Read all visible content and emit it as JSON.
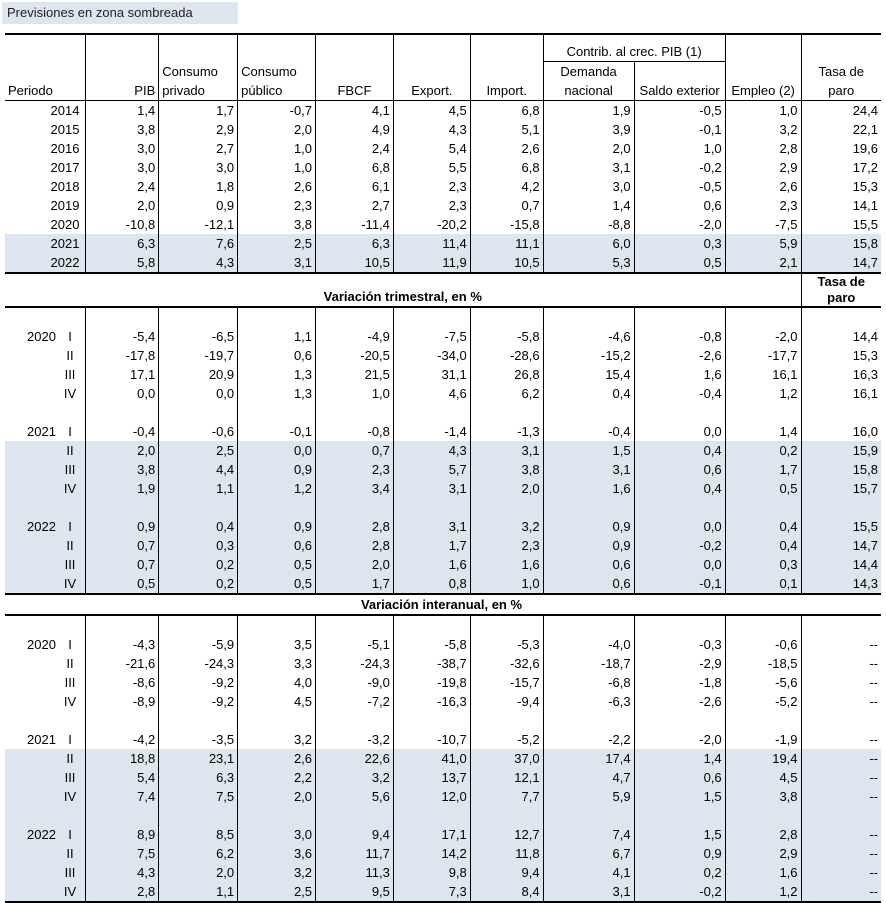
{
  "legend": "Previsiones en zona sombreada",
  "headers": {
    "periodo": "Periodo",
    "pib": "PIB",
    "consumo_privado": "Consumo privado",
    "consumo_publico": "Consumo público",
    "fbcf": "FBCF",
    "export": "Export.",
    "import": "Import.",
    "contrib": "Contrib. al crec. PIB (1)",
    "demanda_nacional": "Demanda nacional",
    "saldo_exterior": "Saldo exterior",
    "empleo": "Empleo (2)",
    "tasa_paro": "Tasa de paro"
  },
  "annual": [
    {
      "period": "2014",
      "values": [
        "1,4",
        "1,7",
        "-0,7",
        "4,1",
        "4,5",
        "6,8",
        "1,9",
        "-0,5",
        "1,0",
        "24,4"
      ],
      "shaded": false
    },
    {
      "period": "2015",
      "values": [
        "3,8",
        "2,9",
        "2,0",
        "4,9",
        "4,3",
        "5,1",
        "3,9",
        "-0,1",
        "3,2",
        "22,1"
      ],
      "shaded": false
    },
    {
      "period": "2016",
      "values": [
        "3,0",
        "2,7",
        "1,0",
        "2,4",
        "5,4",
        "2,6",
        "2,0",
        "1,0",
        "2,8",
        "19,6"
      ],
      "shaded": false
    },
    {
      "period": "2017",
      "values": [
        "3,0",
        "3,0",
        "1,0",
        "6,8",
        "5,5",
        "6,8",
        "3,1",
        "-0,2",
        "2,9",
        "17,2"
      ],
      "shaded": false
    },
    {
      "period": "2018",
      "values": [
        "2,4",
        "1,8",
        "2,6",
        "6,1",
        "2,3",
        "4,2",
        "3,0",
        "-0,5",
        "2,6",
        "15,3"
      ],
      "shaded": false
    },
    {
      "period": "2019",
      "values": [
        "2,0",
        "0,9",
        "2,3",
        "2,7",
        "2,3",
        "0,7",
        "1,4",
        "0,6",
        "2,3",
        "14,1"
      ],
      "shaded": false
    },
    {
      "period": "2020",
      "values": [
        "-10,8",
        "-12,1",
        "3,8",
        "-11,4",
        "-20,2",
        "-15,8",
        "-8,8",
        "-2,0",
        "-7,5",
        "15,5"
      ],
      "shaded": false
    },
    {
      "period": "2021",
      "values": [
        "6,3",
        "7,6",
        "2,5",
        "6,3",
        "11,4",
        "11,1",
        "6,0",
        "0,3",
        "5,9",
        "15,8"
      ],
      "shaded": true
    },
    {
      "period": "2022",
      "values": [
        "5,8",
        "4,3",
        "3,1",
        "10,5",
        "11,9",
        "10,5",
        "5,3",
        "0,5",
        "2,1",
        "14,7"
      ],
      "shaded": true
    }
  ],
  "quarterly_title": "Variación trimestral, en %",
  "quarterly_paro": "Tasa de paro",
  "quarterly": [
    {
      "year": "2020",
      "q": "I",
      "values": [
        "-5,4",
        "-6,5",
        "1,1",
        "-4,9",
        "-7,5",
        "-5,8",
        "-4,6",
        "-0,8",
        "-2,0",
        "14,4"
      ],
      "shaded": false
    },
    {
      "year": "",
      "q": "II",
      "values": [
        "-17,8",
        "-19,7",
        "0,6",
        "-20,5",
        "-34,0",
        "-28,6",
        "-15,2",
        "-2,6",
        "-17,7",
        "15,3"
      ],
      "shaded": false
    },
    {
      "year": "",
      "q": "III",
      "values": [
        "17,1",
        "20,9",
        "1,3",
        "21,5",
        "31,1",
        "26,8",
        "15,4",
        "1,6",
        "16,1",
        "16,3"
      ],
      "shaded": false
    },
    {
      "year": "",
      "q": "IV",
      "values": [
        "0,0",
        "0,0",
        "1,3",
        "1,0",
        "4,6",
        "6,2",
        "0,4",
        "-0,4",
        "1,2",
        "16,1"
      ],
      "shaded": false
    },
    {
      "gap": true
    },
    {
      "year": "2021",
      "q": "I",
      "values": [
        "-0,4",
        "-0,6",
        "-0,1",
        "-0,8",
        "-1,4",
        "-1,3",
        "-0,4",
        "0,0",
        "1,4",
        "16,0"
      ],
      "shaded": false
    },
    {
      "year": "",
      "q": "II",
      "values": [
        "2,0",
        "2,5",
        "0,0",
        "0,7",
        "4,3",
        "3,1",
        "1,5",
        "0,4",
        "0,2",
        "15,9"
      ],
      "shaded": true
    },
    {
      "year": "",
      "q": "III",
      "values": [
        "3,8",
        "4,4",
        "0,9",
        "2,3",
        "5,7",
        "3,8",
        "3,1",
        "0,6",
        "1,7",
        "15,8"
      ],
      "shaded": true
    },
    {
      "year": "",
      "q": "IV",
      "values": [
        "1,9",
        "1,1",
        "1,2",
        "3,4",
        "3,1",
        "2,0",
        "1,6",
        "0,4",
        "0,5",
        "15,7"
      ],
      "shaded": true
    },
    {
      "gap": true,
      "shaded": true
    },
    {
      "year": "2022",
      "q": "I",
      "values": [
        "0,9",
        "0,4",
        "0,9",
        "2,8",
        "3,1",
        "3,2",
        "0,9",
        "0,0",
        "0,4",
        "15,5"
      ],
      "shaded": true
    },
    {
      "year": "",
      "q": "II",
      "values": [
        "0,7",
        "0,3",
        "0,6",
        "2,8",
        "1,7",
        "2,3",
        "0,9",
        "-0,2",
        "0,4",
        "14,7"
      ],
      "shaded": true
    },
    {
      "year": "",
      "q": "III",
      "values": [
        "0,7",
        "0,2",
        "0,5",
        "2,0",
        "1,6",
        "1,6",
        "0,6",
        "0,0",
        "0,3",
        "14,4"
      ],
      "shaded": true
    },
    {
      "year": "",
      "q": "IV",
      "values": [
        "0,5",
        "0,2",
        "0,5",
        "1,7",
        "0,8",
        "1,0",
        "0,6",
        "-0,1",
        "0,1",
        "14,3"
      ],
      "shaded": true
    }
  ],
  "interanual_title": "Variación interanual, en %",
  "interanual": [
    {
      "year": "2020",
      "q": "I",
      "values": [
        "-4,3",
        "-5,9",
        "3,5",
        "-5,1",
        "-5,8",
        "-5,3",
        "-4,0",
        "-0,3",
        "-0,6",
        "--"
      ],
      "shaded": false
    },
    {
      "year": "",
      "q": "II",
      "values": [
        "-21,6",
        "-24,3",
        "3,3",
        "-24,3",
        "-38,7",
        "-32,6",
        "-18,7",
        "-2,9",
        "-18,5",
        "--"
      ],
      "shaded": false
    },
    {
      "year": "",
      "q": "III",
      "values": [
        "-8,6",
        "-9,2",
        "4,0",
        "-9,0",
        "-19,8",
        "-15,7",
        "-6,8",
        "-1,8",
        "-5,6",
        "--"
      ],
      "shaded": false
    },
    {
      "year": "",
      "q": "IV",
      "values": [
        "-8,9",
        "-9,2",
        "4,5",
        "-7,2",
        "-16,3",
        "-9,4",
        "-6,3",
        "-2,6",
        "-5,2",
        "--"
      ],
      "shaded": false
    },
    {
      "gap": true
    },
    {
      "year": "2021",
      "q": "I",
      "values": [
        "-4,2",
        "-3,5",
        "3,2",
        "-3,2",
        "-10,7",
        "-5,2",
        "-2,2",
        "-2,0",
        "-1,9",
        "--"
      ],
      "shaded": false
    },
    {
      "year": "",
      "q": "II",
      "values": [
        "18,8",
        "23,1",
        "2,6",
        "22,6",
        "41,0",
        "37,0",
        "17,4",
        "1,4",
        "19,4",
        "--"
      ],
      "shaded": true
    },
    {
      "year": "",
      "q": "III",
      "values": [
        "5,4",
        "6,3",
        "2,2",
        "3,2",
        "13,7",
        "12,1",
        "4,7",
        "0,6",
        "4,5",
        "--"
      ],
      "shaded": true
    },
    {
      "year": "",
      "q": "IV",
      "values": [
        "7,4",
        "7,5",
        "2,0",
        "5,6",
        "12,0",
        "7,7",
        "5,9",
        "1,5",
        "3,8",
        "--"
      ],
      "shaded": true
    },
    {
      "gap": true,
      "shaded": true
    },
    {
      "year": "2022",
      "q": "I",
      "values": [
        "8,9",
        "8,5",
        "3,0",
        "9,4",
        "17,1",
        "12,7",
        "7,4",
        "1,5",
        "2,8",
        "--"
      ],
      "shaded": true
    },
    {
      "year": "",
      "q": "II",
      "values": [
        "7,5",
        "6,2",
        "3,6",
        "11,7",
        "14,2",
        "11,8",
        "6,7",
        "0,9",
        "2,9",
        "--"
      ],
      "shaded": true
    },
    {
      "year": "",
      "q": "III",
      "values": [
        "4,3",
        "2,0",
        "3,2",
        "11,3",
        "9,8",
        "9,4",
        "4,1",
        "0,2",
        "1,6",
        "--"
      ],
      "shaded": true
    },
    {
      "year": "",
      "q": "IV",
      "values": [
        "2,8",
        "1,1",
        "2,5",
        "9,5",
        "7,3",
        "8,4",
        "3,1",
        "-0,2",
        "1,2",
        "--"
      ],
      "shaded": true
    }
  ]
}
